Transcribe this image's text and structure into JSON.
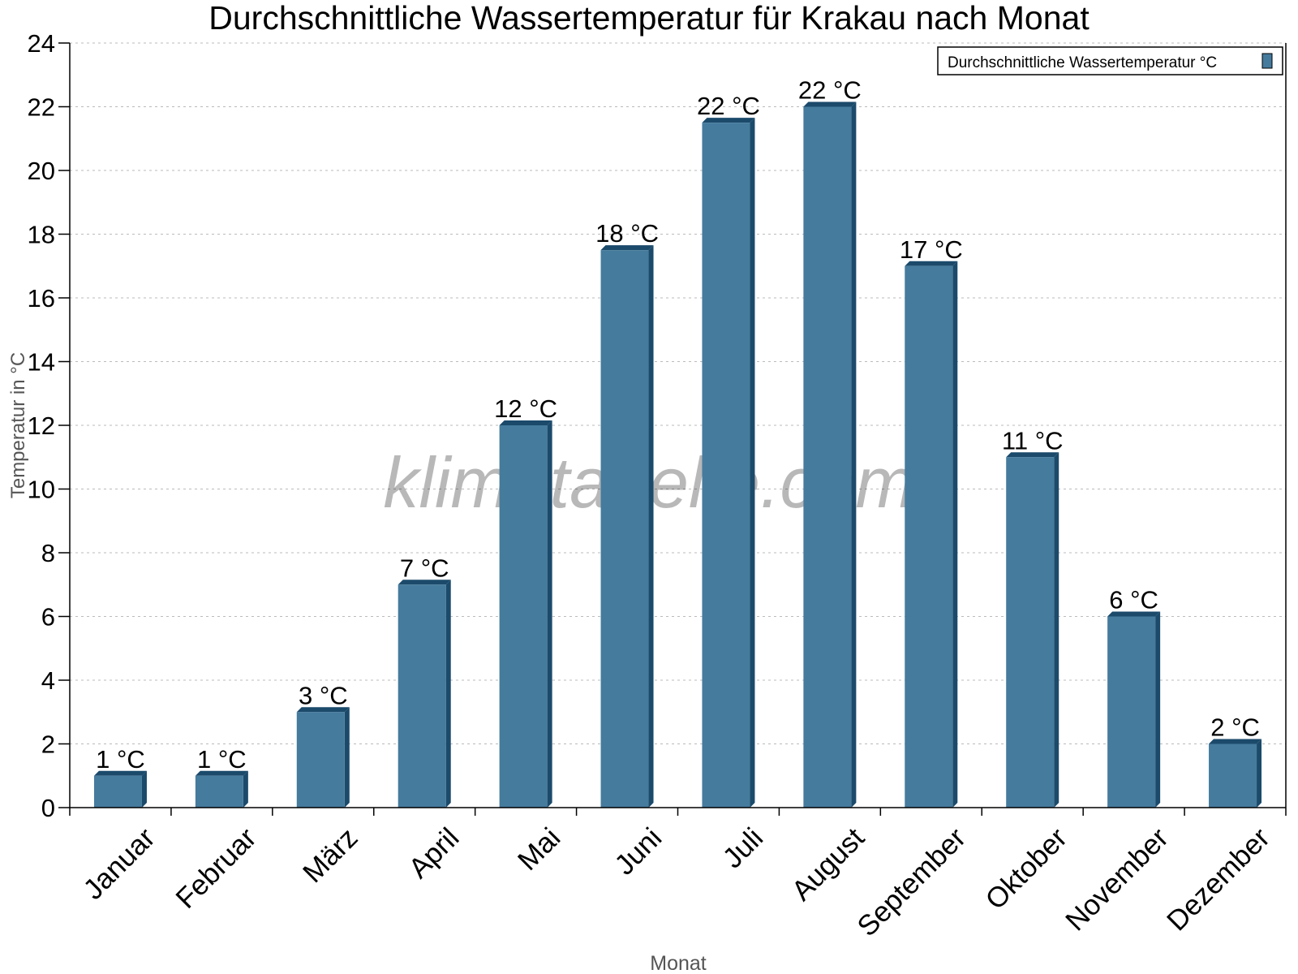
{
  "chart_data": {
    "type": "bar",
    "title": "Durchschnittliche Wassertemperatur für Krakau nach Monat",
    "xlabel": "Monat",
    "ylabel": "Temperatur in °C",
    "ylim": [
      0,
      24
    ],
    "yticks": [
      0,
      2,
      4,
      6,
      8,
      10,
      12,
      14,
      16,
      18,
      20,
      22,
      24
    ],
    "grid": true,
    "legend_placement": "top-right",
    "categories": [
      "Januar",
      "Februar",
      "März",
      "April",
      "Mai",
      "Juni",
      "Juli",
      "August",
      "September",
      "Oktober",
      "November",
      "Dezember"
    ],
    "series": [
      {
        "name": "Durchschnittliche Wassertemperatur °C",
        "values": [
          1,
          1,
          3,
          7,
          12,
          17.5,
          21.5,
          22,
          17,
          11,
          6,
          2
        ],
        "labels": [
          "1 °C",
          "1 °C",
          "3 °C",
          "7 °C",
          "12 °C",
          "18 °C",
          "22 °C",
          "22 °C",
          "17 °C",
          "11 °C",
          "6 °C",
          "2 °C"
        ],
        "color": "#457b9d",
        "side_color": "#1b4a6b"
      }
    ],
    "watermark": "klimatabelle.com"
  }
}
